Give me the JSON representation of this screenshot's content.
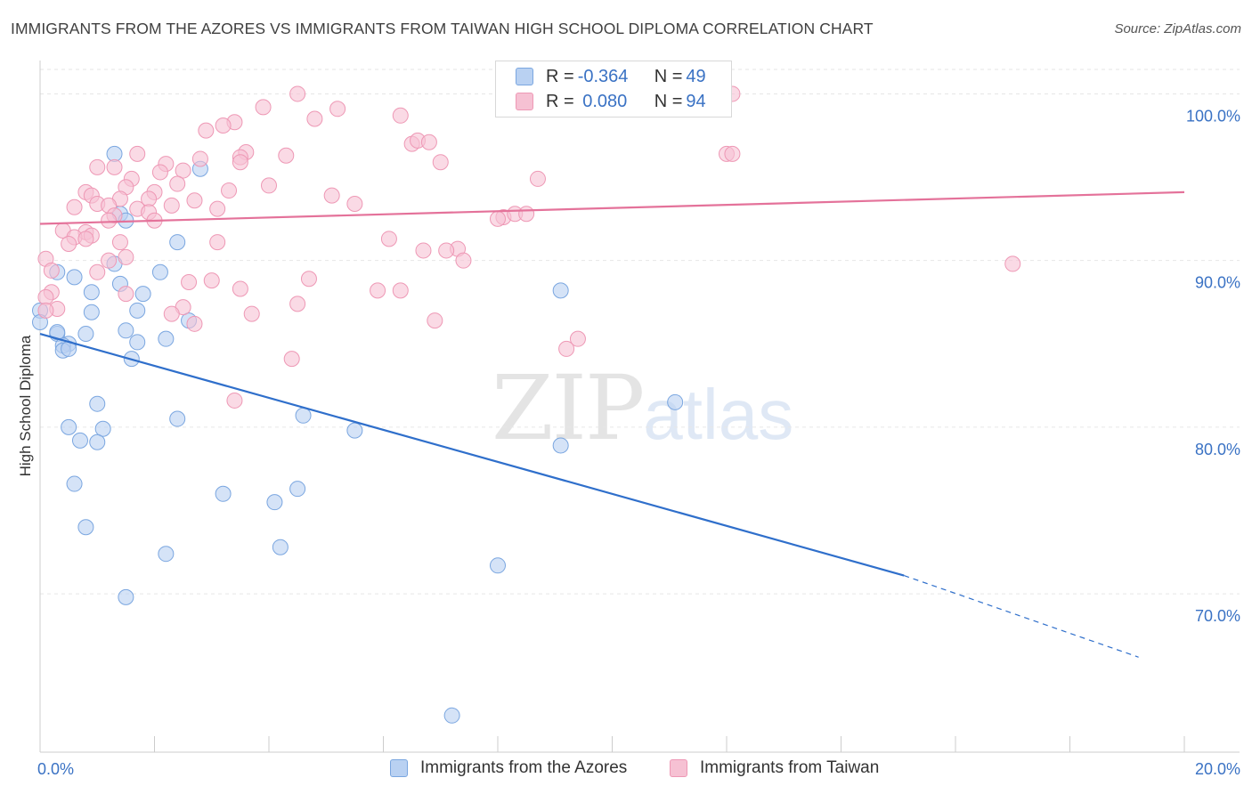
{
  "title": "IMMIGRANTS FROM THE AZORES VS IMMIGRANTS FROM TAIWAN HIGH SCHOOL DIPLOMA CORRELATION CHART",
  "source": "Source: ZipAtlas.com",
  "watermark": {
    "zip": "ZIP",
    "atlas": "atlas"
  },
  "legend_top": [
    {
      "r_label": "R =",
      "r_value": "-0.364",
      "n_label": "N =",
      "n_value": "49"
    },
    {
      "r_label": "R =",
      "r_value": " 0.080",
      "n_label": "N =",
      "n_value": "94"
    }
  ],
  "colors": {
    "azores_fill": "#b9d1f2",
    "azores_stroke": "#7aa6e0",
    "azores_line": "#2f6fcb",
    "taiwan_fill": "#f6c1d3",
    "taiwan_stroke": "#ee98b5",
    "taiwan_line": "#e4729a",
    "tick_label": "#3a72c4",
    "grid": "#e6e6e6"
  },
  "chart_data": {
    "type": "scatter",
    "title": "IMMIGRANTS FROM THE AZORES VS IMMIGRANTS FROM TAIWAN HIGH SCHOOL DIPLOMA CORRELATION CHART",
    "xlabel": "",
    "ylabel": "High School Diploma",
    "xlim": [
      0,
      20
    ],
    "ylim": [
      60.5,
      102
    ],
    "x_tick_labels": [
      "0.0%",
      "20.0%"
    ],
    "y_ticks": [
      70,
      80,
      90,
      100
    ],
    "y_tick_labels": [
      "70.0%",
      "80.0%",
      "90.0%",
      "100.0%"
    ],
    "grid": true,
    "legend": "top-center",
    "series": [
      {
        "name": "Immigrants from the Azores",
        "r": -0.364,
        "n": 49,
        "trend": {
          "x0": 0,
          "y0": 85.6,
          "x1": 15.1,
          "y1": 71.1,
          "dash_x1": 19.2,
          "dash_y1": 66.2
        },
        "points": [
          [
            1.3,
            96.4
          ],
          [
            2.8,
            95.5
          ],
          [
            1.4,
            92.8
          ],
          [
            1.5,
            92.4
          ],
          [
            2.4,
            91.1
          ],
          [
            0.3,
            89.3
          ],
          [
            0.6,
            89.0
          ],
          [
            1.3,
            89.8
          ],
          [
            1.4,
            88.6
          ],
          [
            2.1,
            89.3
          ],
          [
            0.9,
            88.1
          ],
          [
            1.8,
            88.0
          ],
          [
            0.0,
            87.0
          ],
          [
            0.9,
            86.9
          ],
          [
            1.7,
            87.0
          ],
          [
            2.6,
            86.4
          ],
          [
            0.0,
            86.3
          ],
          [
            0.3,
            85.6
          ],
          [
            0.8,
            85.6
          ],
          [
            1.5,
            85.8
          ],
          [
            0.5,
            85.0
          ],
          [
            0.4,
            84.9
          ],
          [
            0.4,
            84.6
          ],
          [
            1.7,
            85.1
          ],
          [
            2.2,
            85.3
          ],
          [
            1.6,
            84.1
          ],
          [
            9.1,
            88.2
          ],
          [
            1.0,
            81.4
          ],
          [
            11.1,
            81.5
          ],
          [
            0.5,
            80.0
          ],
          [
            1.1,
            79.9
          ],
          [
            2.4,
            80.5
          ],
          [
            4.6,
            80.7
          ],
          [
            5.5,
            79.8
          ],
          [
            0.7,
            79.2
          ],
          [
            1.0,
            79.1
          ],
          [
            9.1,
            78.9
          ],
          [
            0.6,
            76.6
          ],
          [
            3.2,
            76.0
          ],
          [
            4.1,
            75.5
          ],
          [
            4.5,
            76.3
          ],
          [
            0.8,
            74.0
          ],
          [
            2.2,
            72.4
          ],
          [
            4.2,
            72.8
          ],
          [
            8.0,
            71.7
          ],
          [
            1.5,
            69.8
          ],
          [
            7.2,
            62.7
          ],
          [
            0.3,
            85.7
          ],
          [
            0.5,
            84.7
          ]
        ]
      },
      {
        "name": "Immigrants from Taiwan",
        "r": 0.08,
        "n": 94,
        "trend": {
          "x0": 0,
          "y0": 92.2,
          "x1": 20,
          "y1": 94.1
        },
        "points": [
          [
            4.5,
            100.0
          ],
          [
            12.1,
            100.0
          ],
          [
            3.9,
            99.2
          ],
          [
            5.2,
            99.1
          ],
          [
            3.4,
            98.3
          ],
          [
            4.8,
            98.5
          ],
          [
            6.3,
            98.7
          ],
          [
            3.2,
            98.1
          ],
          [
            2.9,
            97.8
          ],
          [
            6.5,
            97.0
          ],
          [
            6.6,
            97.2
          ],
          [
            6.8,
            97.1
          ],
          [
            1.7,
            96.4
          ],
          [
            3.6,
            96.5
          ],
          [
            4.3,
            96.3
          ],
          [
            3.5,
            96.2
          ],
          [
            2.8,
            96.1
          ],
          [
            12.0,
            96.4
          ],
          [
            12.1,
            96.4
          ],
          [
            3.5,
            95.9
          ],
          [
            7.0,
            95.9
          ],
          [
            2.2,
            95.8
          ],
          [
            1.0,
            95.6
          ],
          [
            1.3,
            95.6
          ],
          [
            2.5,
            95.4
          ],
          [
            2.1,
            95.3
          ],
          [
            1.6,
            94.9
          ],
          [
            8.7,
            94.9
          ],
          [
            2.4,
            94.6
          ],
          [
            4.0,
            94.5
          ],
          [
            1.5,
            94.4
          ],
          [
            3.3,
            94.2
          ],
          [
            0.8,
            94.1
          ],
          [
            2.0,
            94.1
          ],
          [
            0.9,
            93.9
          ],
          [
            5.1,
            93.9
          ],
          [
            1.4,
            93.7
          ],
          [
            2.7,
            93.6
          ],
          [
            1.9,
            93.7
          ],
          [
            1.0,
            93.4
          ],
          [
            1.2,
            93.3
          ],
          [
            2.3,
            93.3
          ],
          [
            5.5,
            93.4
          ],
          [
            1.7,
            93.1
          ],
          [
            3.1,
            93.1
          ],
          [
            0.6,
            93.2
          ],
          [
            1.9,
            92.9
          ],
          [
            1.3,
            92.7
          ],
          [
            8.1,
            92.6
          ],
          [
            8.3,
            92.8
          ],
          [
            8.5,
            92.8
          ],
          [
            1.2,
            92.4
          ],
          [
            2.0,
            92.4
          ],
          [
            8.0,
            92.5
          ],
          [
            0.4,
            91.8
          ],
          [
            0.8,
            91.7
          ],
          [
            0.9,
            91.5
          ],
          [
            0.6,
            91.4
          ],
          [
            0.8,
            91.3
          ],
          [
            3.1,
            91.1
          ],
          [
            1.4,
            91.1
          ],
          [
            0.5,
            91.0
          ],
          [
            6.1,
            91.3
          ],
          [
            7.3,
            90.7
          ],
          [
            7.1,
            90.6
          ],
          [
            6.7,
            90.6
          ],
          [
            1.5,
            90.2
          ],
          [
            0.1,
            90.1
          ],
          [
            1.2,
            90.0
          ],
          [
            7.4,
            90.0
          ],
          [
            17.0,
            89.8
          ],
          [
            0.2,
            89.4
          ],
          [
            1.0,
            89.3
          ],
          [
            4.7,
            88.9
          ],
          [
            3.0,
            88.8
          ],
          [
            2.6,
            88.7
          ],
          [
            3.5,
            88.3
          ],
          [
            5.9,
            88.2
          ],
          [
            6.3,
            88.2
          ],
          [
            0.2,
            88.1
          ],
          [
            0.1,
            87.8
          ],
          [
            1.5,
            88.0
          ],
          [
            4.5,
            87.4
          ],
          [
            2.5,
            87.2
          ],
          [
            0.3,
            87.1
          ],
          [
            0.1,
            87.0
          ],
          [
            2.3,
            86.8
          ],
          [
            3.7,
            86.8
          ],
          [
            6.9,
            86.4
          ],
          [
            2.7,
            86.2
          ],
          [
            9.4,
            85.3
          ],
          [
            9.2,
            84.7
          ],
          [
            4.4,
            84.1
          ],
          [
            3.4,
            81.6
          ]
        ]
      }
    ]
  }
}
